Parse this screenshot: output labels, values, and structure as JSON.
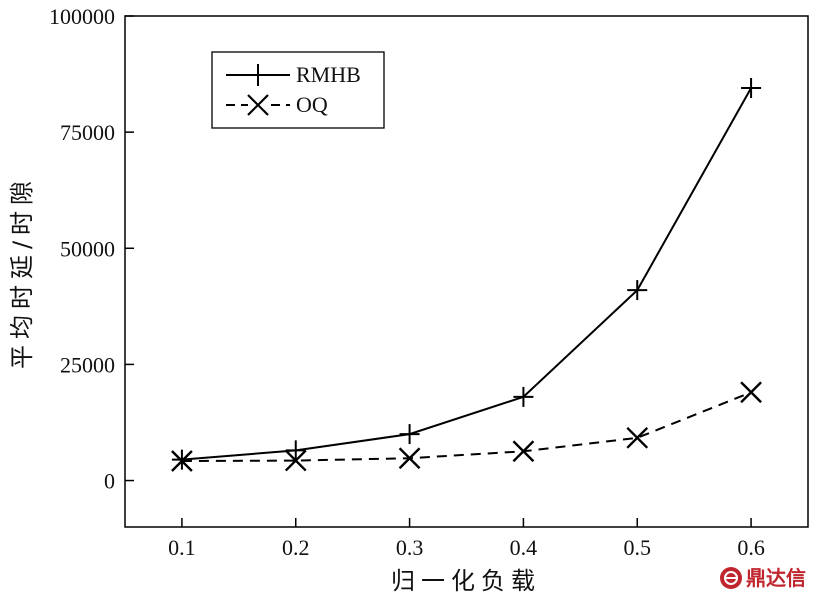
{
  "chart_data": {
    "type": "line",
    "title": "",
    "xlabel": "归一化负载",
    "ylabel": "平均时延/时隙",
    "x": [
      0.1,
      0.2,
      0.3,
      0.4,
      0.5,
      0.6
    ],
    "x_tick_labels": [
      "0.1",
      "0.2",
      "0.3",
      "0.4",
      "0.5",
      "0.6"
    ],
    "y_tick_labels": [
      "0",
      "25000",
      "50000",
      "75000",
      "100000"
    ],
    "y_ticks": [
      0,
      25000,
      50000,
      75000,
      100000
    ],
    "xlim": [
      0.05,
      0.65
    ],
    "ylim": [
      -10000,
      100000
    ],
    "grid": false,
    "legend_position": "top-left",
    "series": [
      {
        "name": "RMHB",
        "marker": "plus",
        "line_style": "solid",
        "color": "#000000",
        "values": [
          4500,
          6500,
          10000,
          18000,
          41000,
          84500
        ]
      },
      {
        "name": "OQ",
        "marker": "x",
        "line_style": "dashed",
        "color": "#000000",
        "values": [
          4200,
          4300,
          4800,
          6300,
          9200,
          19000
        ]
      }
    ]
  },
  "watermark": {
    "text": "鼎达信",
    "icon": "seal-logo-icon",
    "color": "#c0262d"
  }
}
